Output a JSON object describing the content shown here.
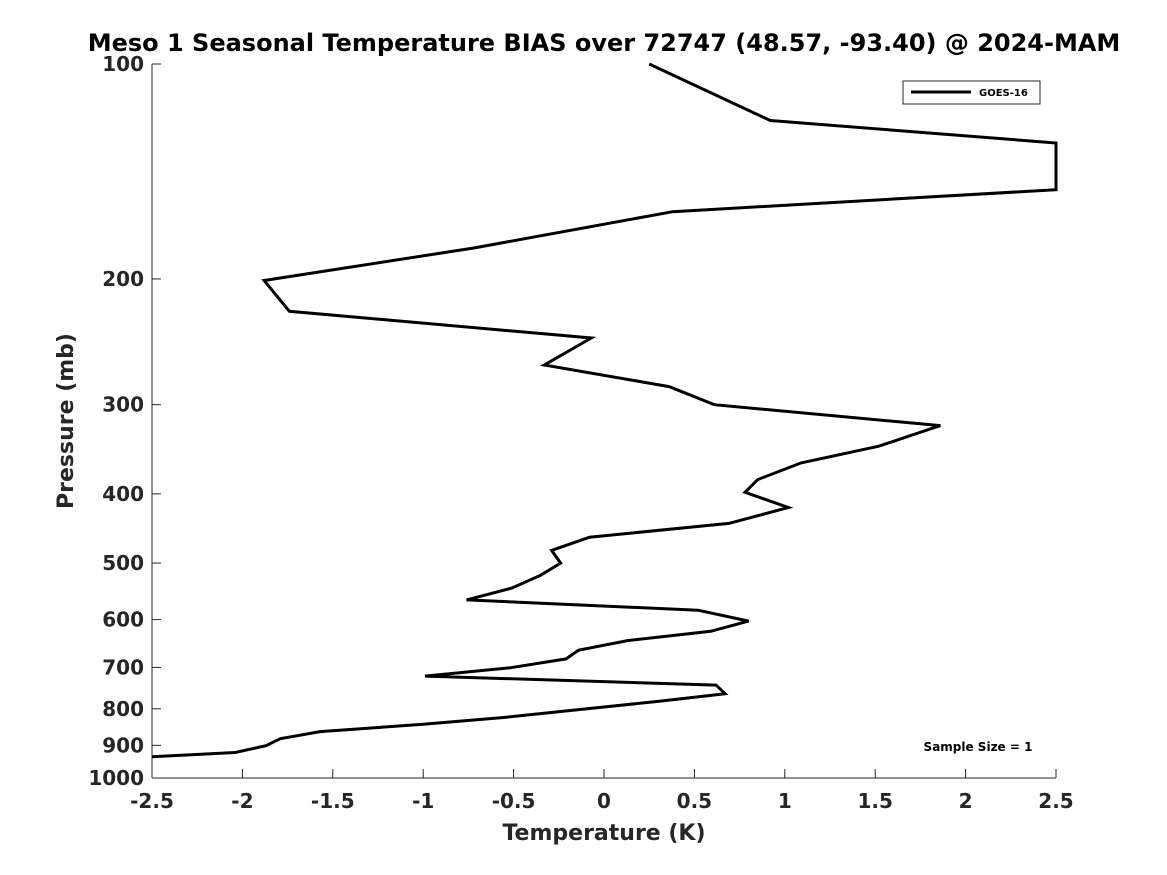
{
  "colors": {
    "line": "#000000",
    "axis": "#262626",
    "background": "#ffffff"
  },
  "chart_data": {
    "type": "line",
    "title": "Meso 1 Seasonal Temperature BIAS over 72747 (48.57, -93.40) @ 2024-MAM",
    "xlabel": "Temperature (K)",
    "ylabel": "Pressure (mb)",
    "xlim": [
      -2.5,
      2.5
    ],
    "ylim": [
      100,
      1000
    ],
    "y_scale": "log",
    "y_reversed": true,
    "x_ticks": [
      -2.5,
      -2,
      -1.5,
      -1,
      -0.5,
      0,
      0.5,
      1,
      1.5,
      2,
      2.5
    ],
    "x_tick_labels": [
      "-2.5",
      "-2",
      "-1.5",
      "-1",
      "-0.5",
      "0",
      "0.5",
      "1",
      "1.5",
      "2",
      "2.5"
    ],
    "y_ticks": [
      100,
      200,
      300,
      400,
      500,
      600,
      700,
      800,
      900,
      1000
    ],
    "y_tick_labels": [
      "100",
      "200",
      "300",
      "400",
      "500",
      "600",
      "700",
      "800",
      "900",
      "1000"
    ],
    "legend_placement": "top-right",
    "series": [
      {
        "name": "GOES-16",
        "points": [
          [
            0.25,
            100
          ],
          [
            0.92,
            120
          ],
          [
            2.5,
            129
          ],
          [
            2.5,
            150
          ],
          [
            0.38,
            161
          ],
          [
            -0.72,
            181
          ],
          [
            -1.88,
            201
          ],
          [
            -1.74,
            222
          ],
          [
            -0.07,
            242
          ],
          [
            -0.33,
            264
          ],
          [
            0.36,
            283
          ],
          [
            0.61,
            300
          ],
          [
            1.86,
            321
          ],
          [
            1.52,
            343
          ],
          [
            1.09,
            362
          ],
          [
            0.85,
            382
          ],
          [
            0.78,
            398
          ],
          [
            1.02,
            418
          ],
          [
            0.69,
            440
          ],
          [
            -0.08,
            460
          ],
          [
            -0.29,
            480
          ],
          [
            -0.24,
            500
          ],
          [
            -0.35,
            520
          ],
          [
            -0.51,
            542
          ],
          [
            -0.76,
            563
          ],
          [
            0.52,
            582
          ],
          [
            0.8,
            603
          ],
          [
            0.59,
            623
          ],
          [
            0.13,
            642
          ],
          [
            -0.14,
            662
          ],
          [
            -0.21,
            681
          ],
          [
            -0.52,
            701
          ],
          [
            -0.99,
            720
          ],
          [
            0.62,
            741
          ],
          [
            0.67,
            762
          ],
          [
            0.3,
            781
          ],
          [
            -0.12,
            801
          ],
          [
            -0.54,
            822
          ],
          [
            -1.0,
            841
          ],
          [
            -1.57,
            861
          ],
          [
            -1.79,
            881
          ],
          [
            -1.87,
            901
          ],
          [
            -2.04,
            921
          ],
          [
            -2.5,
            934
          ]
        ]
      }
    ],
    "annotations": [
      "Sample Size = 1"
    ]
  }
}
